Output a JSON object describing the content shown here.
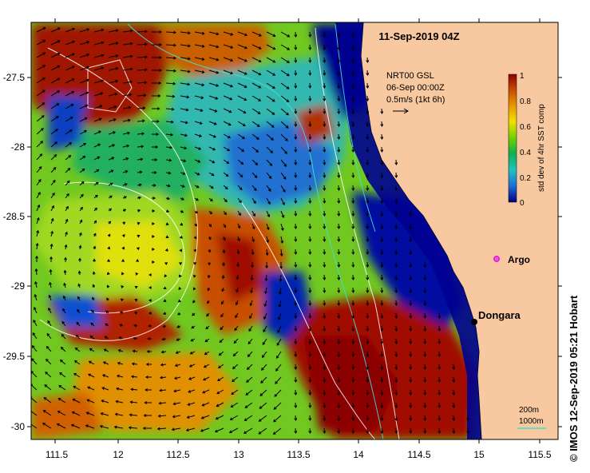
{
  "title": "11-Sep-2019 04Z",
  "product": {
    "line1": "NRT00 GSL",
    "line2": "06-Sep 00:00Z",
    "line3": "0.5m/s (1kt 6h)"
  },
  "colorbar": {
    "label": "std dev of 4hr SST comp",
    "ticks": [
      "1",
      "0.8",
      "0.6",
      "0.4",
      "0.2",
      "0"
    ],
    "colors": [
      "#8b0000",
      "#c84a00",
      "#e89a00",
      "#f0e000",
      "#70d000",
      "#10b050",
      "#20c0c0",
      "#2070d8",
      "#000080"
    ]
  },
  "places": {
    "argo": "Argo",
    "dongara": "Dongara"
  },
  "contours": {
    "shallow": "200m",
    "deep": "1000m",
    "deep_color": "#40e0d0"
  },
  "credit": "© IMOS 12-Sep-2019 05:21 Hobart",
  "axes": {
    "x_ticks": [
      "111.5",
      "12",
      "112.5",
      "13",
      "113.5",
      "14",
      "114.5",
      "15",
      "115.5"
    ],
    "y_ticks": [
      "-27.5",
      "-28",
      "-28.5",
      "-29",
      "-29.5",
      "-30"
    ]
  },
  "colors": {
    "land": "#f8c9a0",
    "argo_marker": "#e020e0",
    "coast": "#000000"
  }
}
